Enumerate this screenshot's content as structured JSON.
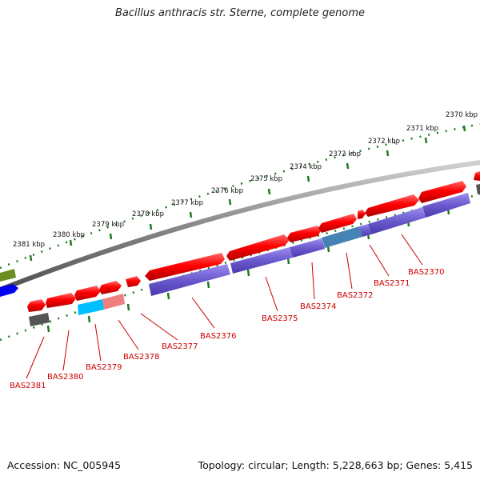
{
  "title": "Bacillus anthracis str. Sterne, complete genome",
  "footer": {
    "accession": "Accession: NC_005945",
    "topology": "Topology: circular; Length: 5,228,663 bp; Genes: 5,415"
  },
  "colors": {
    "backbone": "#808080",
    "tick": "#1f7a1f",
    "forward_gene": "#ee0000",
    "reverse_gene": "#6a5acd",
    "gene_label": "#cc0000",
    "olive_gene": "#6b8e23",
    "blue_gene": "#0000ee",
    "dark_gene": "#555555",
    "cyan_gene": "#00bfff",
    "pink_gene": "#f08080",
    "steel_gene": "#4682b4"
  },
  "kbp_labels": [
    "2370 kbp",
    "2371 kbp",
    "2372 kbp",
    "2373 kbp",
    "2374 kbp",
    "2375 kbp",
    "2376 kbp",
    "2377 kbp",
    "2378 kbp",
    "2379 kbp",
    "2380 kbp",
    "2381 kbp"
  ],
  "gene_labels": [
    "BAS2370",
    "BAS2371",
    "BAS2372",
    "BAS2374",
    "BAS2375",
    "BAS2376",
    "BAS2377",
    "BAS2378",
    "BAS2379",
    "BAS2380",
    "BAS2381"
  ]
}
